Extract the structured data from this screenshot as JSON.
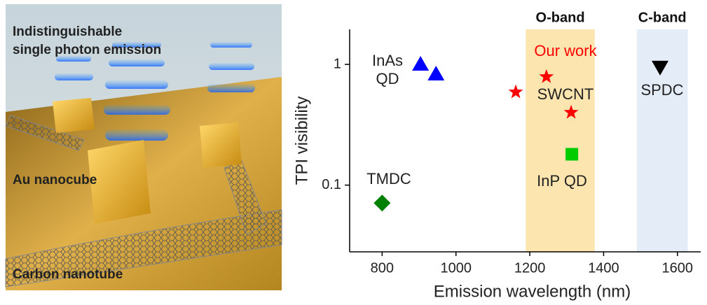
{
  "illustration": {
    "labels": [
      "Indistinguishable",
      "single photon emission",
      "Au nanocube",
      "Carbon nanotube"
    ]
  },
  "chart_data": {
    "type": "scatter",
    "x_label": "Emission wavelength (nm)",
    "y_label": "TPI visibility",
    "xlim": [
      712,
      1663
    ],
    "ylim": [
      0.028,
      1.95
    ],
    "xticks": [
      800,
      1000,
      1200,
      1400,
      1600
    ],
    "yticks": [
      0.1,
      1
    ],
    "log_y": true,
    "bands": [
      {
        "name": "O-band",
        "range": [
          1189,
          1376
        ],
        "color": "#fde5b0"
      },
      {
        "name": "C-band",
        "range": [
          1490,
          1628
        ],
        "color": "#e3ecf7"
      }
    ],
    "series": [
      {
        "label": "InAs QD",
        "marker": "triangle-up",
        "color": "#0000ff",
        "x": [
          904,
          946
        ],
        "values": [
          1.0,
          0.83
        ]
      },
      {
        "label": "SWCNT",
        "note": "Our work",
        "note_color": "#ff0000",
        "marker": "star",
        "color": "#ff0000",
        "x": [
          1162,
          1245,
          1312
        ],
        "values": [
          0.59,
          0.79,
          0.4
        ]
      },
      {
        "label": "InP QD",
        "marker": "square",
        "color": "#00cc00",
        "x": [
          1314
        ],
        "values": [
          0.18
        ]
      },
      {
        "label": "TMDC",
        "marker": "diamond",
        "color": "#008000",
        "x": [
          800
        ],
        "values": [
          0.071
        ]
      },
      {
        "label": "SPDC",
        "marker": "triangle-down",
        "color": "#000000",
        "x": [
          1553
        ],
        "values": [
          0.95
        ]
      }
    ]
  }
}
